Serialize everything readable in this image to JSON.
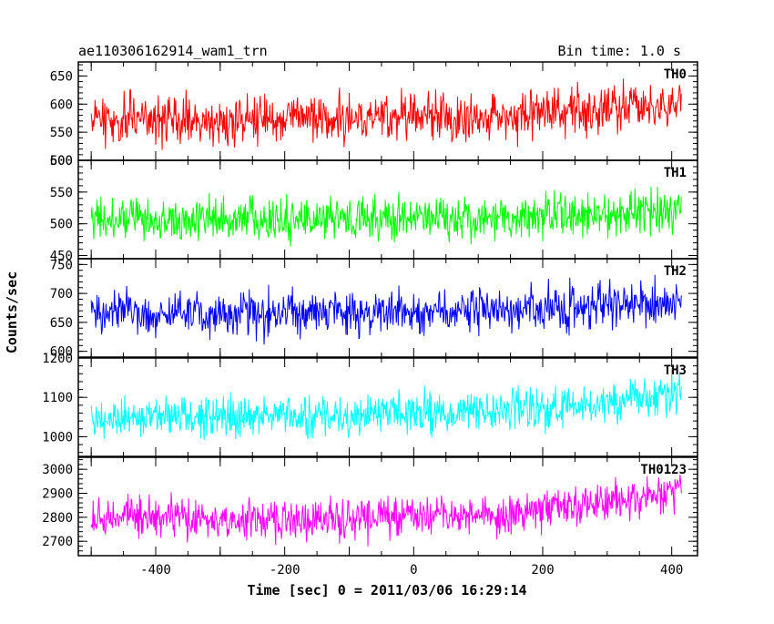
{
  "chart_data": {
    "type": "line",
    "title": "ae110306162914_wam1_trn",
    "subtitle": "Bin time: 1.0 s",
    "xlabel": "Time [sec] 0 = 2011/03/06 16:29:14",
    "ylabel": "Counts/sec",
    "xlim": [
      -520,
      440
    ],
    "x_ticks": [
      -400,
      -200,
      0,
      200,
      400
    ],
    "x_range": [
      -500,
      415
    ],
    "grid": false,
    "panels": [
      {
        "name": "TH0",
        "color": "#ff0000",
        "ylim": [
          500,
          675
        ],
        "y_ticks": [
          500,
          550,
          600,
          650
        ],
        "trend": [
          [
            -500,
            573
          ],
          [
            -300,
            570
          ],
          [
            -100,
            575
          ],
          [
            0,
            578
          ],
          [
            100,
            573
          ],
          [
            200,
            580
          ],
          [
            300,
            590
          ],
          [
            415,
            605
          ]
        ],
        "noise": 33
      },
      {
        "name": "TH1",
        "color": "#00ff00",
        "ylim": [
          445,
          600
        ],
        "y_ticks": [
          450,
          500,
          550,
          600
        ],
        "trend": [
          [
            -500,
            508
          ],
          [
            -300,
            508
          ],
          [
            -100,
            507
          ],
          [
            0,
            510
          ],
          [
            100,
            510
          ],
          [
            200,
            512
          ],
          [
            300,
            515
          ],
          [
            415,
            522
          ]
        ],
        "noise": 26
      },
      {
        "name": "TH2",
        "color": "#0000ff",
        "ylim": [
          590,
          760
        ],
        "y_ticks": [
          600,
          650,
          700,
          750
        ],
        "trend": [
          [
            -500,
            668
          ],
          [
            -300,
            667
          ],
          [
            -100,
            665
          ],
          [
            0,
            664
          ],
          [
            100,
            670
          ],
          [
            200,
            672
          ],
          [
            300,
            678
          ],
          [
            415,
            685
          ]
        ],
        "noise": 30
      },
      {
        "name": "TH3",
        "color": "#00ffff",
        "ylim": [
          950,
          1200
        ],
        "y_ticks": [
          1000,
          1100,
          1200
        ],
        "trend": [
          [
            -500,
            1050
          ],
          [
            -300,
            1052
          ],
          [
            -100,
            1055
          ],
          [
            0,
            1060
          ],
          [
            100,
            1065
          ],
          [
            200,
            1070
          ],
          [
            300,
            1085
          ],
          [
            415,
            1110
          ]
        ],
        "noise": 40
      },
      {
        "name": "TH0123",
        "color": "#ff00ff",
        "ylim": [
          2640,
          3050
        ],
        "y_ticks": [
          2700,
          2800,
          2900,
          3000
        ],
        "trend": [
          [
            -500,
            2800
          ],
          [
            -300,
            2795
          ],
          [
            -100,
            2790
          ],
          [
            0,
            2800
          ],
          [
            100,
            2810
          ],
          [
            200,
            2830
          ],
          [
            300,
            2870
          ],
          [
            415,
            2920
          ]
        ],
        "noise": 62
      }
    ]
  }
}
